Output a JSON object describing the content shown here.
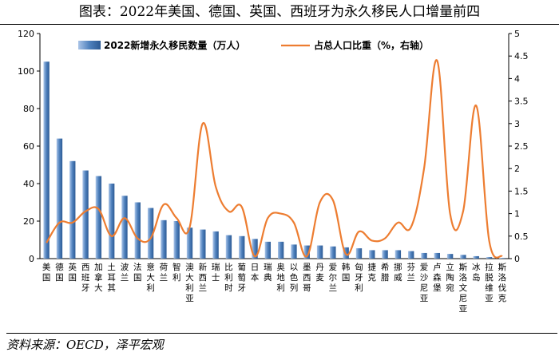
{
  "title": "图表：2022年美国、德国、英国、西班牙为永久移民人口增量前四",
  "source": "资料来源：OECD，泽平宏观",
  "chart_data": {
    "type": "bar",
    "categories": [
      "美国",
      "德国",
      "英国",
      "西班牙",
      "加拿大",
      "土耳其",
      "波兰",
      "法国",
      "意大利",
      "荷兰",
      "智利",
      "澳大利亚",
      "新西兰",
      "瑞士",
      "比利时",
      "葡萄牙",
      "日本",
      "瑞典",
      "奥地利",
      "以色列",
      "墨西哥",
      "丹麦",
      "爱尔兰",
      "韩国",
      "匈牙利",
      "捷克",
      "希腊",
      "挪威",
      "芬兰",
      "爱沙尼亚",
      "卢森堡",
      "立陶宛",
      "斯洛文尼亚",
      "冰岛",
      "拉脱维亚",
      "斯洛伐克"
    ],
    "series": [
      {
        "name": "2022新增永久移民数量（万人）",
        "type": "bar",
        "axis": "left",
        "color": "#4f81bd",
        "values": [
          105,
          64,
          52,
          47,
          44,
          40,
          33.5,
          30,
          27,
          20.5,
          20,
          16.5,
          15.5,
          14.5,
          12.5,
          12,
          10.5,
          9,
          9,
          7.5,
          7,
          7,
          6.5,
          6,
          5.5,
          4.5,
          4.5,
          4.5,
          4,
          3,
          3,
          2.5,
          2,
          1.3,
          0.8,
          0.3
        ]
      },
      {
        "name": "占总人口比重（%，右轴）",
        "type": "line",
        "axis": "right",
        "color": "#ed7d31",
        "values": [
          0.35,
          0.8,
          0.8,
          1.05,
          1.1,
          0.5,
          0.9,
          0.45,
          0.45,
          1.2,
          0.9,
          0.7,
          3.0,
          1.6,
          1.05,
          1.15,
          0.05,
          0.9,
          1.0,
          0.8,
          0.05,
          1.25,
          1.3,
          0.1,
          0.6,
          0.4,
          0.45,
          0.8,
          0.7,
          2.0,
          4.4,
          1.0,
          1.05,
          3.4,
          0.4,
          0.05
        ]
      }
    ],
    "ylim": [
      0,
      120
    ],
    "yticks": [
      0,
      20,
      40,
      60,
      80,
      100,
      120
    ],
    "y2lim": [
      0,
      5
    ],
    "y2ticks": [
      "0",
      "0.5",
      "1",
      "1.5",
      "2",
      "2.5",
      "3",
      "3.5",
      "4",
      "4.5",
      "5"
    ],
    "legend": "top"
  }
}
